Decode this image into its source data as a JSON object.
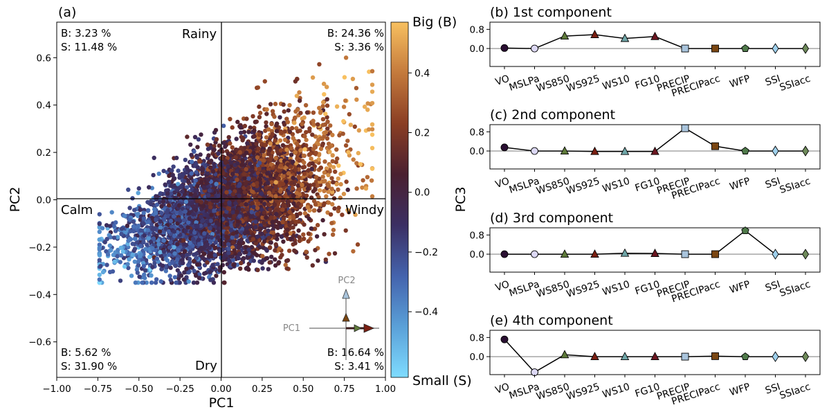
{
  "colorbar": {
    "label": "PC3",
    "top_label": "Big (B)",
    "bottom_label": "Small (S)",
    "ticks": [
      0.4,
      0.2,
      0.0,
      -0.2,
      -0.4
    ],
    "tick_labels": [
      "0.4",
      "0.2",
      "0.0",
      "−0.2",
      "−0.4"
    ],
    "range": [
      -0.62,
      0.57
    ],
    "colors": [
      "#7fdcff",
      "#5aa0d8",
      "#4463ad",
      "#3b2f63",
      "#4a2030",
      "#8a3e24",
      "#c47a3c",
      "#f8c060"
    ]
  },
  "scatter": {
    "panel_label": "(a)",
    "xlabel": "PC1",
    "ylabel": "PC2",
    "xlim": [
      -1.0,
      1.0
    ],
    "ylim": [
      -0.75,
      0.75
    ],
    "xticks": [
      -1.0,
      -0.75,
      -0.5,
      -0.25,
      0.0,
      0.25,
      0.5,
      0.75,
      1.0
    ],
    "xtick_labels": [
      "−1.00",
      "−0.75",
      "−0.50",
      "−0.25",
      "0.00",
      "0.25",
      "0.50",
      "0.75",
      "1.00"
    ],
    "yticks": [
      0.6,
      0.4,
      0.2,
      0.0,
      -0.2,
      -0.4,
      -0.6
    ],
    "ytick_labels": [
      "0.6",
      "0.4",
      "0.2",
      "0.0",
      "−0.2",
      "−0.4",
      "−0.6"
    ],
    "quadrant_labels": {
      "top": "Rainy",
      "bottom": "Dry",
      "left": "Calm",
      "right": "Windy"
    },
    "corner_stats": {
      "top_left": [
        "B: 3.23 %",
        "S: 11.48 %"
      ],
      "top_right": [
        "B: 24.36 %",
        "S: 3.36 %"
      ],
      "bottom_left": [
        "B: 5.62 %",
        "S: 31.90 %"
      ],
      "bottom_right": [
        "B: 16.64 %",
        "S: 3.41 %"
      ]
    },
    "inset_labels": {
      "pc1": "PC1",
      "pc2": "PC2"
    }
  },
  "chart_data": [
    {
      "type": "scatter",
      "title": "(a)",
      "xlabel": "PC1",
      "ylabel": "PC2",
      "color_label": "PC3",
      "xlim": [
        -1.0,
        1.0
      ],
      "ylim": [
        -0.75,
        0.75
      ],
      "grid": false,
      "point_cloud": {
        "x_range": [
          -0.75,
          0.92
        ],
        "y_range": [
          -0.35,
          0.6
        ],
        "x_center": 0.05,
        "y_center": -0.05,
        "approx_points": 5000
      }
    },
    {
      "type": "line",
      "title": "(b) 1st component",
      "categories": [
        "VO",
        "MSLPa",
        "WS850",
        "WS925",
        "WS10",
        "FG10",
        "PRECIP",
        "PRECIPacc",
        "WFP",
        "SSI",
        "SSIacc"
      ],
      "values": [
        0.02,
        0.0,
        0.52,
        0.58,
        0.42,
        0.5,
        0.0,
        0.0,
        0.0,
        0.0,
        0.0
      ],
      "ylim": [
        -0.75,
        1.1
      ]
    },
    {
      "type": "line",
      "title": "(c) 2nd component",
      "categories": [
        "VO",
        "MSLPa",
        "WS850",
        "WS925",
        "WS10",
        "FG10",
        "PRECIP",
        "PRECIPacc",
        "WFP",
        "SSI",
        "SSIacc"
      ],
      "values": [
        0.15,
        0.0,
        0.0,
        -0.02,
        -0.02,
        -0.02,
        0.95,
        0.2,
        0.0,
        0.0,
        0.0
      ],
      "ylim": [
        -0.75,
        1.1
      ]
    },
    {
      "type": "line",
      "title": "(d) 3rd component",
      "categories": [
        "VO",
        "MSLPa",
        "WS850",
        "WS925",
        "WS10",
        "FG10",
        "PRECIP",
        "PRECIPacc",
        "WFP",
        "SSI",
        "SSIacc"
      ],
      "values": [
        0.0,
        0.0,
        0.0,
        0.0,
        0.04,
        0.03,
        0.0,
        0.0,
        0.98,
        0.0,
        0.0
      ],
      "ylim": [
        -0.75,
        1.1
      ]
    },
    {
      "type": "line",
      "title": "(e) 4th component",
      "categories": [
        "VO",
        "MSLPa",
        "WS850",
        "WS925",
        "WS10",
        "FG10",
        "PRECIP",
        "PRECIPacc",
        "WFP",
        "SSI",
        "SSIacc"
      ],
      "values": [
        0.72,
        -0.65,
        0.08,
        0.0,
        0.0,
        0.0,
        0.0,
        0.02,
        0.0,
        0.0,
        0.0
      ],
      "ylim": [
        -0.75,
        1.1
      ]
    }
  ],
  "loading_panels": {
    "yticks": [
      0.8,
      0.0
    ],
    "ytick_labels": [
      "0.8",
      "0.0"
    ],
    "markers": [
      "circle",
      "circle",
      "triangle",
      "triangle",
      "triangle",
      "triangle",
      "square",
      "square",
      "pentagon",
      "diamond",
      "diamond"
    ],
    "marker_colors": [
      "#2a0f32",
      "#dcd8f5",
      "#5e7a3a",
      "#7a1f12",
      "#6fa6a8",
      "#6b1620",
      "#a9c4dc",
      "#7a4612",
      "#4f7a4a",
      "#9fd0ec",
      "#6e8a5a"
    ]
  }
}
